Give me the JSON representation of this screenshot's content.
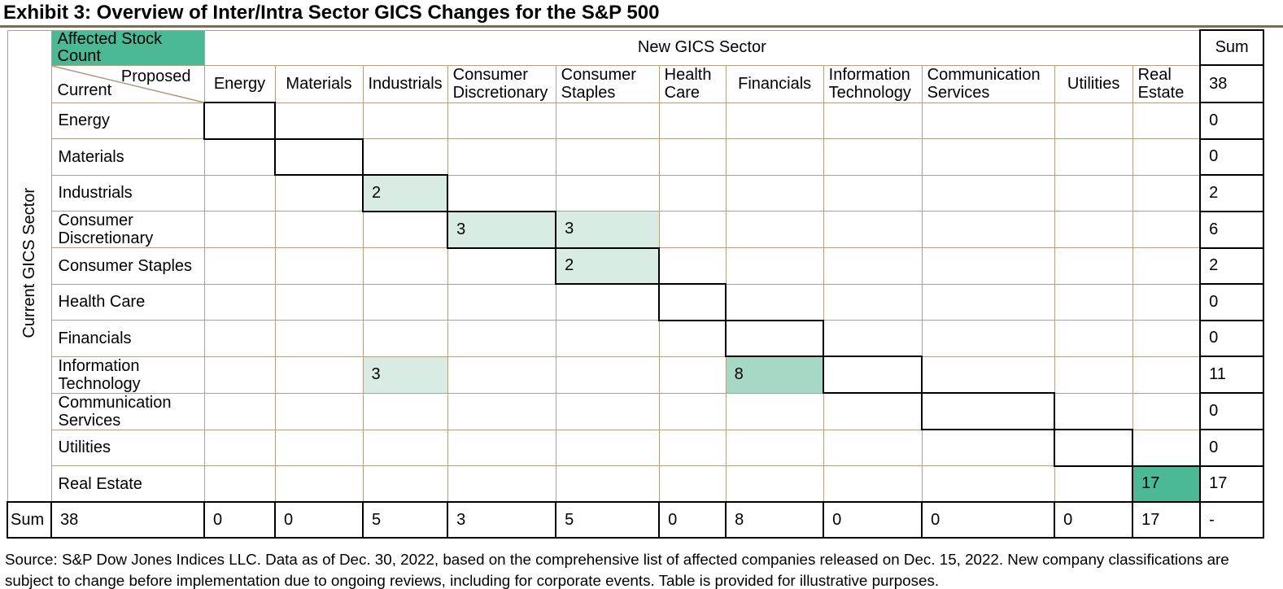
{
  "title": "Exhibit 3: Overview of Inter/Intra Sector GICS Changes for the S&P 500",
  "source_note_lines": [
    "Source: S&P Dow Jones Indices LLC. Data as of Dec. 30, 2022, based on the comprehensive list of affected companies released on Dec. 15, 2022. New company classifications are",
    "subject to change before implementation due to ongoing reviews, including for corporate events. Table is provided for illustrative purposes."
  ],
  "colors": {
    "accent_dark": "#4cb996",
    "accent_mid": "#a5d9c6",
    "accent_light": "#d9ece3",
    "grid_line": "#b1a084",
    "diagonal_outline": "#000000",
    "title_rule": "#7d6e45"
  },
  "chart_data": {
    "type": "heatmap",
    "title": "Affected Stock Count",
    "x_axis": "New GICS Sector",
    "y_axis": "Current GICS Sector",
    "categories": [
      "Energy",
      "Materials",
      "Industrials",
      "Consumer Discretionary",
      "Consumer Staples",
      "Health Care",
      "Financials",
      "Information Technology",
      "Communication Services",
      "Utilities",
      "Real Estate"
    ],
    "points": [
      {
        "from": "Industrials",
        "to": "Industrials",
        "value": 2
      },
      {
        "from": "Consumer Discretionary",
        "to": "Consumer Discretionary",
        "value": 3
      },
      {
        "from": "Consumer Discretionary",
        "to": "Consumer Staples",
        "value": 3
      },
      {
        "from": "Consumer Staples",
        "to": "Consumer Staples",
        "value": 2
      },
      {
        "from": "Information Technology",
        "to": "Industrials",
        "value": 3
      },
      {
        "from": "Information Technology",
        "to": "Financials",
        "value": 8
      },
      {
        "from": "Real Estate",
        "to": "Real Estate",
        "value": 17
      }
    ],
    "row_sums": [
      0,
      0,
      2,
      6,
      2,
      0,
      0,
      11,
      0,
      0,
      17
    ],
    "col_sums": [
      0,
      0,
      5,
      3,
      5,
      0,
      8,
      0,
      0,
      0,
      17
    ],
    "grand_total": 38
  },
  "matrix": {
    "corner_label": "Affected Stock Count",
    "col_axis_title": "New GICS Sector",
    "row_axis_title": "Current GICS Sector",
    "diagonal_top_label": "Proposed",
    "diagonal_bottom_label": "Current",
    "sum_label": "Sum",
    "grand_total": "38",
    "no_total_marker": "-",
    "sectors": [
      "Energy",
      "Materials",
      "Industrials",
      "Consumer Discretionary",
      "Consumer Staples",
      "Health Care",
      "Financials",
      "Information Technology",
      "Communication Services",
      "Utilities",
      "Real Estate"
    ],
    "rows": [
      {
        "name": "Energy",
        "cells": [
          "",
          "",
          "",
          "",
          "",
          "",
          "",
          "",
          "",
          "",
          ""
        ],
        "sum": "0"
      },
      {
        "name": "Materials",
        "cells": [
          "",
          "",
          "",
          "",
          "",
          "",
          "",
          "",
          "",
          "",
          ""
        ],
        "sum": "0"
      },
      {
        "name": "Industrials",
        "cells": [
          "",
          "",
          "2",
          "",
          "",
          "",
          "",
          "",
          "",
          "",
          ""
        ],
        "sum": "2"
      },
      {
        "name": "Consumer Discretionary",
        "cells": [
          "",
          "",
          "",
          "3",
          "3",
          "",
          "",
          "",
          "",
          "",
          ""
        ],
        "sum": "6"
      },
      {
        "name": "Consumer Staples",
        "cells": [
          "",
          "",
          "",
          "",
          "2",
          "",
          "",
          "",
          "",
          "",
          ""
        ],
        "sum": "2"
      },
      {
        "name": "Health Care",
        "cells": [
          "",
          "",
          "",
          "",
          "",
          "",
          "",
          "",
          "",
          "",
          ""
        ],
        "sum": "0"
      },
      {
        "name": "Financials",
        "cells": [
          "",
          "",
          "",
          "",
          "",
          "",
          "",
          "",
          "",
          "",
          ""
        ],
        "sum": "0"
      },
      {
        "name": "Information Technology",
        "cells": [
          "",
          "",
          "3",
          "",
          "",
          "",
          "8",
          "",
          "",
          "",
          ""
        ],
        "sum": "11"
      },
      {
        "name": "Communication Services",
        "cells": [
          "",
          "",
          "",
          "",
          "",
          "",
          "",
          "",
          "",
          "",
          ""
        ],
        "sum": "0"
      },
      {
        "name": "Utilities",
        "cells": [
          "",
          "",
          "",
          "",
          "",
          "",
          "",
          "",
          "",
          "",
          ""
        ],
        "sum": "0"
      },
      {
        "name": "Real Estate",
        "cells": [
          "",
          "",
          "",
          "",
          "",
          "",
          "",
          "",
          "",
          "",
          "17"
        ],
        "sum": "17"
      }
    ],
    "col_sums": [
      "0",
      "0",
      "5",
      "3",
      "5",
      "0",
      "8",
      "0",
      "0",
      "0",
      "17"
    ],
    "heat_rules": {
      "light_min": 1,
      "mid_min": 5,
      "dark_min": 10
    }
  }
}
